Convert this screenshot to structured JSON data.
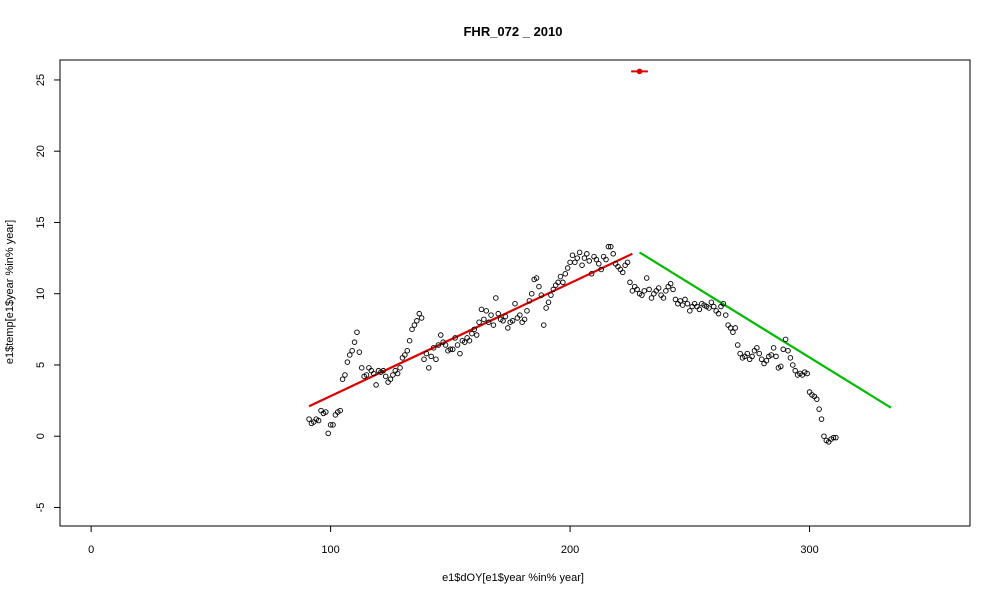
{
  "chart_data": {
    "type": "scatter",
    "title": "FHR_072 _ 2010",
    "xlabel": "e1$dOY[e1$year %in% year]",
    "ylabel": "e1$temp[e1$year %in% year]",
    "xlim": [
      -13,
      367
    ],
    "ylim": [
      -6.3,
      26.4
    ],
    "xticks": [
      0,
      100,
      200,
      300
    ],
    "yticks": [
      -5,
      0,
      5,
      10,
      15,
      20,
      25
    ],
    "grid": false,
    "legend": "none",
    "points": [
      [
        91,
        1.2
      ],
      [
        92,
        0.9
      ],
      [
        93,
        1.0
      ],
      [
        94,
        1.2
      ],
      [
        95,
        1.1
      ],
      [
        96,
        1.8
      ],
      [
        97,
        1.6
      ],
      [
        98,
        1.7
      ],
      [
        99,
        0.2
      ],
      [
        100,
        0.8
      ],
      [
        101,
        0.8
      ],
      [
        102,
        1.5
      ],
      [
        103,
        1.7
      ],
      [
        104,
        1.8
      ],
      [
        105,
        4.0
      ],
      [
        106,
        4.3
      ],
      [
        107,
        5.2
      ],
      [
        108,
        5.7
      ],
      [
        109,
        6.0
      ],
      [
        110,
        6.6
      ],
      [
        111,
        7.3
      ],
      [
        112,
        5.9
      ],
      [
        113,
        4.8
      ],
      [
        114,
        4.2
      ],
      [
        115,
        4.3
      ],
      [
        116,
        4.8
      ],
      [
        117,
        4.6
      ],
      [
        118,
        4.4
      ],
      [
        119,
        3.6
      ],
      [
        120,
        4.6
      ],
      [
        121,
        4.5
      ],
      [
        122,
        4.6
      ],
      [
        123,
        4.2
      ],
      [
        124,
        3.8
      ],
      [
        125,
        4.0
      ],
      [
        126,
        4.3
      ],
      [
        127,
        4.6
      ],
      [
        128,
        4.4
      ],
      [
        129,
        4.8
      ],
      [
        130,
        5.5
      ],
      [
        131,
        5.7
      ],
      [
        132,
        6.0
      ],
      [
        133,
        6.7
      ],
      [
        134,
        7.5
      ],
      [
        135,
        7.8
      ],
      [
        136,
        8.1
      ],
      [
        137,
        8.6
      ],
      [
        138,
        8.3
      ],
      [
        139,
        5.4
      ],
      [
        140,
        5.8
      ],
      [
        141,
        4.8
      ],
      [
        142,
        5.6
      ],
      [
        143,
        6.2
      ],
      [
        144,
        5.4
      ],
      [
        145,
        6.4
      ],
      [
        146,
        7.1
      ],
      [
        147,
        6.6
      ],
      [
        148,
        6.4
      ],
      [
        149,
        6.0
      ],
      [
        150,
        6.1
      ],
      [
        151,
        6.1
      ],
      [
        152,
        6.9
      ],
      [
        153,
        6.4
      ],
      [
        154,
        5.8
      ],
      [
        155,
        6.7
      ],
      [
        156,
        6.6
      ],
      [
        157,
        6.9
      ],
      [
        158,
        6.7
      ],
      [
        159,
        7.2
      ],
      [
        160,
        7.5
      ],
      [
        161,
        7.1
      ],
      [
        162,
        8.0
      ],
      [
        163,
        8.9
      ],
      [
        164,
        8.2
      ],
      [
        165,
        8.8
      ],
      [
        166,
        8.0
      ],
      [
        167,
        8.5
      ],
      [
        168,
        7.8
      ],
      [
        169,
        9.7
      ],
      [
        170,
        8.6
      ],
      [
        171,
        8.2
      ],
      [
        172,
        8.1
      ],
      [
        173,
        8.4
      ],
      [
        174,
        7.6
      ],
      [
        175,
        8.0
      ],
      [
        176,
        8.1
      ],
      [
        177,
        9.3
      ],
      [
        178,
        8.3
      ],
      [
        179,
        8.5
      ],
      [
        180,
        8.0
      ],
      [
        181,
        8.2
      ],
      [
        182,
        8.8
      ],
      [
        183,
        9.5
      ],
      [
        184,
        10.0
      ],
      [
        185,
        11.0
      ],
      [
        186,
        11.1
      ],
      [
        187,
        10.5
      ],
      [
        188,
        9.9
      ],
      [
        189,
        7.8
      ],
      [
        190,
        9.0
      ],
      [
        191,
        9.4
      ],
      [
        192,
        9.9
      ],
      [
        193,
        10.3
      ],
      [
        194,
        10.6
      ],
      [
        195,
        10.8
      ],
      [
        196,
        11.2
      ],
      [
        197,
        10.8
      ],
      [
        198,
        11.4
      ],
      [
        199,
        11.8
      ],
      [
        200,
        12.2
      ],
      [
        201,
        12.7
      ],
      [
        202,
        12.2
      ],
      [
        203,
        12.5
      ],
      [
        204,
        12.9
      ],
      [
        205,
        12.0
      ],
      [
        206,
        12.5
      ],
      [
        207,
        12.8
      ],
      [
        208,
        12.3
      ],
      [
        209,
        11.4
      ],
      [
        210,
        12.6
      ],
      [
        211,
        12.4
      ],
      [
        212,
        12.1
      ],
      [
        213,
        11.7
      ],
      [
        214,
        12.6
      ],
      [
        215,
        12.4
      ],
      [
        216,
        13.3
      ],
      [
        217,
        13.3
      ],
      [
        218,
        12.8
      ],
      [
        219,
        12.1
      ],
      [
        220,
        11.9
      ],
      [
        221,
        11.7
      ],
      [
        222,
        11.5
      ],
      [
        223,
        12.0
      ],
      [
        224,
        12.2
      ],
      [
        225,
        10.8
      ],
      [
        226,
        10.2
      ],
      [
        227,
        10.5
      ],
      [
        228,
        10.3
      ],
      [
        229,
        10.0
      ],
      [
        230,
        9.9
      ],
      [
        231,
        10.2
      ],
      [
        232,
        11.1
      ],
      [
        233,
        10.3
      ],
      [
        234,
        9.7
      ],
      [
        235,
        10.0
      ],
      [
        236,
        10.2
      ],
      [
        237,
        10.4
      ],
      [
        238,
        9.9
      ],
      [
        239,
        9.7
      ],
      [
        240,
        10.2
      ],
      [
        241,
        10.5
      ],
      [
        242,
        10.7
      ],
      [
        243,
        10.3
      ],
      [
        244,
        9.6
      ],
      [
        245,
        9.3
      ],
      [
        246,
        9.5
      ],
      [
        247,
        9.2
      ],
      [
        248,
        9.6
      ],
      [
        249,
        9.3
      ],
      [
        250,
        8.8
      ],
      [
        251,
        9.1
      ],
      [
        252,
        9.3
      ],
      [
        253,
        9.1
      ],
      [
        254,
        8.9
      ],
      [
        255,
        9.3
      ],
      [
        256,
        9.2
      ],
      [
        257,
        9.1
      ],
      [
        258,
        9.0
      ],
      [
        259,
        9.4
      ],
      [
        260,
        9.1
      ],
      [
        261,
        8.8
      ],
      [
        262,
        8.6
      ],
      [
        263,
        9.1
      ],
      [
        264,
        9.3
      ],
      [
        265,
        8.5
      ],
      [
        266,
        7.8
      ],
      [
        267,
        7.6
      ],
      [
        268,
        7.3
      ],
      [
        269,
        7.6
      ],
      [
        270,
        6.4
      ],
      [
        271,
        5.8
      ],
      [
        272,
        5.5
      ],
      [
        273,
        5.6
      ],
      [
        274,
        5.8
      ],
      [
        275,
        5.4
      ],
      [
        276,
        5.6
      ],
      [
        277,
        6.0
      ],
      [
        278,
        6.2
      ],
      [
        279,
        5.8
      ],
      [
        280,
        5.4
      ],
      [
        281,
        5.1
      ],
      [
        282,
        5.3
      ],
      [
        283,
        5.6
      ],
      [
        284,
        5.7
      ],
      [
        285,
        6.2
      ],
      [
        286,
        5.6
      ],
      [
        287,
        4.8
      ],
      [
        288,
        4.9
      ],
      [
        289,
        6.1
      ],
      [
        290,
        6.8
      ],
      [
        291,
        6.0
      ],
      [
        292,
        5.5
      ],
      [
        293,
        5.0
      ],
      [
        294,
        4.6
      ],
      [
        295,
        4.3
      ],
      [
        296,
        4.4
      ],
      [
        297,
        4.3
      ],
      [
        298,
        4.5
      ],
      [
        299,
        4.4
      ],
      [
        300,
        3.1
      ],
      [
        301,
        2.9
      ],
      [
        302,
        2.8
      ],
      [
        303,
        2.6
      ],
      [
        304,
        1.9
      ],
      [
        305,
        1.2
      ],
      [
        306,
        0.0
      ],
      [
        307,
        -0.3
      ],
      [
        308,
        -0.4
      ],
      [
        309,
        -0.2
      ],
      [
        310,
        -0.1
      ],
      [
        311,
        -0.1
      ]
    ],
    "fit_lines": [
      {
        "color": "#dd0000",
        "x": [
          91,
          226
        ],
        "y": [
          2.1,
          12.8
        ]
      },
      {
        "color": "#00bb00",
        "x": [
          229,
          334
        ],
        "y": [
          12.9,
          2.0
        ]
      }
    ],
    "highlight_point": {
      "color": "#dd0000",
      "x": 229,
      "y": 25.6,
      "half_width": 3.5
    }
  }
}
